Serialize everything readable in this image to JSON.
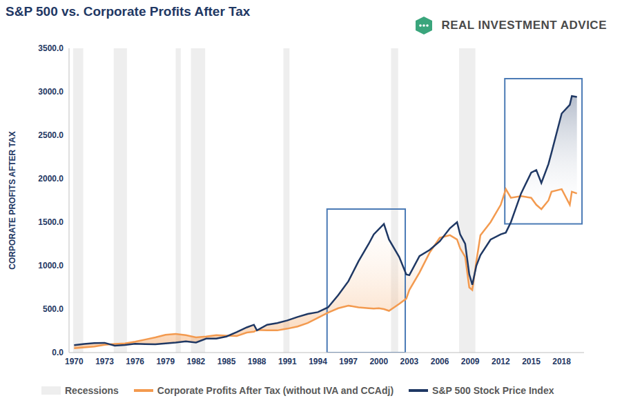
{
  "chart_data": {
    "type": "line",
    "title": "S&P 500 vs. Corporate Profits After Tax",
    "source": "REAL INVESTMENT ADVICE",
    "y_label": "CORPORATE PROFITS AFTER TAX",
    "x": [
      1970,
      1971,
      1972,
      1973,
      1974,
      1975,
      1976,
      1977,
      1978,
      1979,
      1980,
      1981,
      1982,
      1983,
      1984,
      1985,
      1986,
      1987,
      1987.7,
      1988,
      1989,
      1990,
      1991,
      1992,
      1993,
      1994,
      1995,
      1996,
      1997,
      1998,
      1999,
      1999.5,
      2000,
      2000.5,
      2001,
      2002,
      2002.7,
      2003,
      2004,
      2005,
      2006,
      2007,
      2007.7,
      2008,
      2008.5,
      2008.9,
      2009.2,
      2009.6,
      2010,
      2011,
      2012,
      2012.5,
      2013,
      2014,
      2015,
      2015.5,
      2016,
      2016.7,
      2017,
      2018,
      2018.8,
      2019,
      2019.5
    ],
    "series": [
      {
        "name": "Corporate Profits After Tax (without IVA and CCAdj)",
        "color": "#f39a4f",
        "values": [
          50,
          60,
          70,
          90,
          100,
          105,
          125,
          150,
          175,
          205,
          215,
          200,
          175,
          185,
          200,
          195,
          190,
          230,
          240,
          260,
          255,
          255,
          275,
          300,
          340,
          400,
          460,
          510,
          540,
          520,
          510,
          505,
          510,
          500,
          480,
          560,
          620,
          720,
          920,
          1150,
          1320,
          1350,
          1300,
          1200,
          1100,
          750,
          720,
          1050,
          1350,
          1500,
          1700,
          1880,
          1780,
          1800,
          1780,
          1700,
          1650,
          1750,
          1850,
          1880,
          1700,
          1850,
          1830
        ]
      },
      {
        "name": "S&P 500 Stock Price Index",
        "color": "#1f3864",
        "values": [
          85,
          100,
          110,
          112,
          80,
          88,
          102,
          98,
          95,
          105,
          115,
          128,
          115,
          160,
          160,
          185,
          235,
          290,
          320,
          255,
          320,
          340,
          370,
          410,
          445,
          465,
          520,
          660,
          820,
          1050,
          1250,
          1360,
          1420,
          1480,
          1300,
          1100,
          900,
          890,
          1110,
          1180,
          1280,
          1430,
          1500,
          1360,
          1250,
          900,
          780,
          1000,
          1120,
          1300,
          1360,
          1380,
          1500,
          1830,
          2070,
          2100,
          1950,
          2170,
          2300,
          2750,
          2850,
          2950,
          2940
        ]
      }
    ],
    "xlim": [
      1969.5,
      2020.2
    ],
    "xticks": [
      1970,
      1973,
      1976,
      1979,
      1982,
      1985,
      1988,
      1991,
      1994,
      1997,
      2000,
      2003,
      2006,
      2009,
      2012,
      2015,
      2018
    ],
    "ylim": [
      0,
      3500
    ],
    "yticks": [
      {
        "value": 0,
        "label": "0.0"
      },
      {
        "value": 500,
        "label": "500.0"
      },
      {
        "value": 1000,
        "label": "1000.0"
      },
      {
        "value": 1500,
        "label": "1500.0"
      },
      {
        "value": 2000,
        "label": "2000.0"
      },
      {
        "value": 2500,
        "label": "2500.0"
      },
      {
        "value": 3000,
        "label": "3000.0"
      },
      {
        "value": 3500,
        "label": "3500.0"
      }
    ],
    "grid": false,
    "legend": "bottom",
    "recessions": {
      "name": "Recessions",
      "color": "#eeeeee",
      "ranges": [
        [
          1969.9,
          1970.9
        ],
        [
          1973.9,
          1975.2
        ],
        [
          1980.0,
          1980.5
        ],
        [
          1981.5,
          1982.9
        ],
        [
          1990.6,
          1991.2
        ],
        [
          2001.2,
          2001.9
        ],
        [
          2007.9,
          2009.5
        ]
      ]
    },
    "highlight_boxes": {
      "color": "#4a7ab5",
      "boxes": [
        {
          "x": [
            1994.9,
            2002.6
          ],
          "y": [
            0,
            1650
          ]
        },
        {
          "x": [
            2012.4,
            2020
          ],
          "y": [
            1480,
            3150
          ]
        }
      ]
    }
  }
}
